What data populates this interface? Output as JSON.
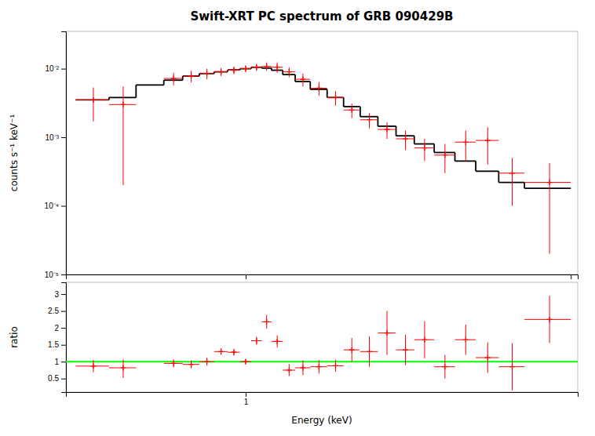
{
  "chart_data": [
    {
      "type": "errorbar",
      "title": "Swift-XRT PC spectrum of GRB 090429B",
      "ylabel": "counts s⁻¹ keV⁻¹",
      "log": true,
      "xlim": [
        0.28,
        10.5
      ],
      "ylim": [
        1e-05,
        0.035
      ],
      "xticks": [
        1,
        10
      ],
      "yticks": [
        {
          "value": 1e-05,
          "label": "10⁻⁵"
        },
        {
          "value": 0.0001,
          "label": "10⁻⁴"
        },
        {
          "value": 0.001,
          "label": "10⁻³"
        },
        {
          "value": 0.01,
          "label": "10⁻²"
        }
      ],
      "tick_labels": "y",
      "grid": false,
      "series": [
        {
          "type": "step",
          "color": "#000000",
          "bins": [
            0.3,
            0.38,
            0.46,
            0.56,
            0.64,
            0.72,
            0.8,
            0.88,
            0.96,
            1.04,
            1.12,
            1.2,
            1.3,
            1.42,
            1.58,
            1.78,
            2.0,
            2.25,
            2.55,
            2.9,
            3.3,
            3.8,
            4.4,
            5.1,
            6.0,
            7.2,
            10.0
          ],
          "values": [
            0.0035,
            0.0038,
            0.0058,
            0.0068,
            0.0078,
            0.0085,
            0.009,
            0.0096,
            0.01,
            0.0105,
            0.0102,
            0.0095,
            0.0082,
            0.0065,
            0.005,
            0.0038,
            0.0028,
            0.002,
            0.00145,
            0.00105,
            0.0008,
            0.0006,
            0.00045,
            0.00032,
            0.00022,
            0.00018
          ]
        },
        {
          "type": "errorbar",
          "color": "#ff0000",
          "marker": "plus",
          "x": [
            0.34,
            0.42,
            0.6,
            0.68,
            0.76,
            0.84,
            0.92,
            1.0,
            1.08,
            1.16,
            1.25,
            1.36,
            1.5,
            1.68,
            1.89,
            2.12,
            2.4,
            2.72,
            3.1,
            3.55,
            4.1,
            4.75,
            5.55,
            6.6,
            8.6
          ],
          "values": [
            0.0035,
            0.003,
            0.0072,
            0.0078,
            0.0085,
            0.009,
            0.0095,
            0.01,
            0.0105,
            0.0108,
            0.0105,
            0.009,
            0.007,
            0.0052,
            0.0038,
            0.0025,
            0.0018,
            0.0013,
            0.00095,
            0.0007,
            0.00055,
            0.00085,
            0.0009,
            0.0003,
            0.00022
          ],
          "xerr": [
            0.04,
            0.04,
            0.04,
            0.04,
            0.04,
            0.04,
            0.04,
            0.04,
            0.04,
            0.04,
            0.05,
            0.06,
            0.08,
            0.1,
            0.11,
            0.12,
            0.15,
            0.17,
            0.2,
            0.25,
            0.3,
            0.35,
            0.45,
            0.6,
            1.4
          ],
          "yerr_lo": [
            0.0018,
            0.0028,
            0.0015,
            0.0015,
            0.0015,
            0.0012,
            0.0012,
            0.0012,
            0.0012,
            0.0015,
            0.0018,
            0.0015,
            0.0015,
            0.0012,
            0.0009,
            0.0006,
            0.00045,
            0.00035,
            0.0003,
            0.00025,
            0.00025,
            0.0004,
            0.0005,
            0.0002,
            0.0002
          ],
          "yerr_hi": [
            0.0018,
            0.0025,
            0.0015,
            0.0015,
            0.0015,
            0.0012,
            0.0012,
            0.0012,
            0.0012,
            0.0015,
            0.0018,
            0.0015,
            0.0015,
            0.0012,
            0.0009,
            0.0006,
            0.00045,
            0.00035,
            0.0003,
            0.00025,
            0.00025,
            0.0004,
            0.0005,
            0.0002,
            0.0002
          ]
        }
      ]
    },
    {
      "type": "errorbar",
      "xlabel": "Energy (keV)",
      "ylabel": "ratio",
      "log": "x",
      "xlim": [
        0.28,
        10.5
      ],
      "ylim": [
        0.1,
        3.35
      ],
      "xticks": [
        1
      ],
      "yticks": [
        0.5,
        1,
        1.5,
        2,
        2.5,
        3
      ],
      "grid": false,
      "series": [
        {
          "type": "hline",
          "color": "#00ff00",
          "values": [
            1.0
          ]
        },
        {
          "type": "errorbar",
          "color": "#ff0000",
          "marker": "plus",
          "x": [
            0.34,
            0.42,
            0.6,
            0.68,
            0.76,
            0.84,
            0.92,
            1.0,
            1.08,
            1.16,
            1.25,
            1.36,
            1.5,
            1.68,
            1.89,
            2.12,
            2.4,
            2.72,
            3.1,
            3.55,
            4.1,
            4.75,
            5.55,
            6.6,
            8.6
          ],
          "values": [
            0.87,
            0.82,
            0.95,
            0.92,
            1.0,
            1.3,
            1.28,
            1.0,
            1.62,
            2.18,
            1.6,
            0.75,
            0.82,
            0.85,
            0.88,
            1.35,
            1.3,
            1.85,
            1.35,
            1.65,
            0.85,
            1.65,
            1.12,
            0.85,
            2.25
          ],
          "xerr": [
            0.04,
            0.04,
            0.04,
            0.04,
            0.04,
            0.04,
            0.04,
            0.04,
            0.04,
            0.04,
            0.05,
            0.06,
            0.08,
            0.1,
            0.11,
            0.12,
            0.15,
            0.17,
            0.2,
            0.25,
            0.3,
            0.35,
            0.45,
            0.6,
            1.4
          ],
          "yerr_lo": [
            0.18,
            0.3,
            0.12,
            0.12,
            0.12,
            0.1,
            0.1,
            0.08,
            0.12,
            0.2,
            0.18,
            0.18,
            0.22,
            0.2,
            0.18,
            0.35,
            0.45,
            0.65,
            0.45,
            0.55,
            0.35,
            0.45,
            0.45,
            0.7,
            0.7
          ],
          "yerr_hi": [
            0.18,
            0.25,
            0.12,
            0.12,
            0.12,
            0.1,
            0.1,
            0.08,
            0.12,
            0.2,
            0.18,
            0.18,
            0.22,
            0.2,
            0.18,
            0.35,
            0.45,
            0.65,
            0.45,
            0.55,
            0.35,
            0.45,
            0.45,
            0.7,
            0.7
          ]
        }
      ]
    }
  ]
}
